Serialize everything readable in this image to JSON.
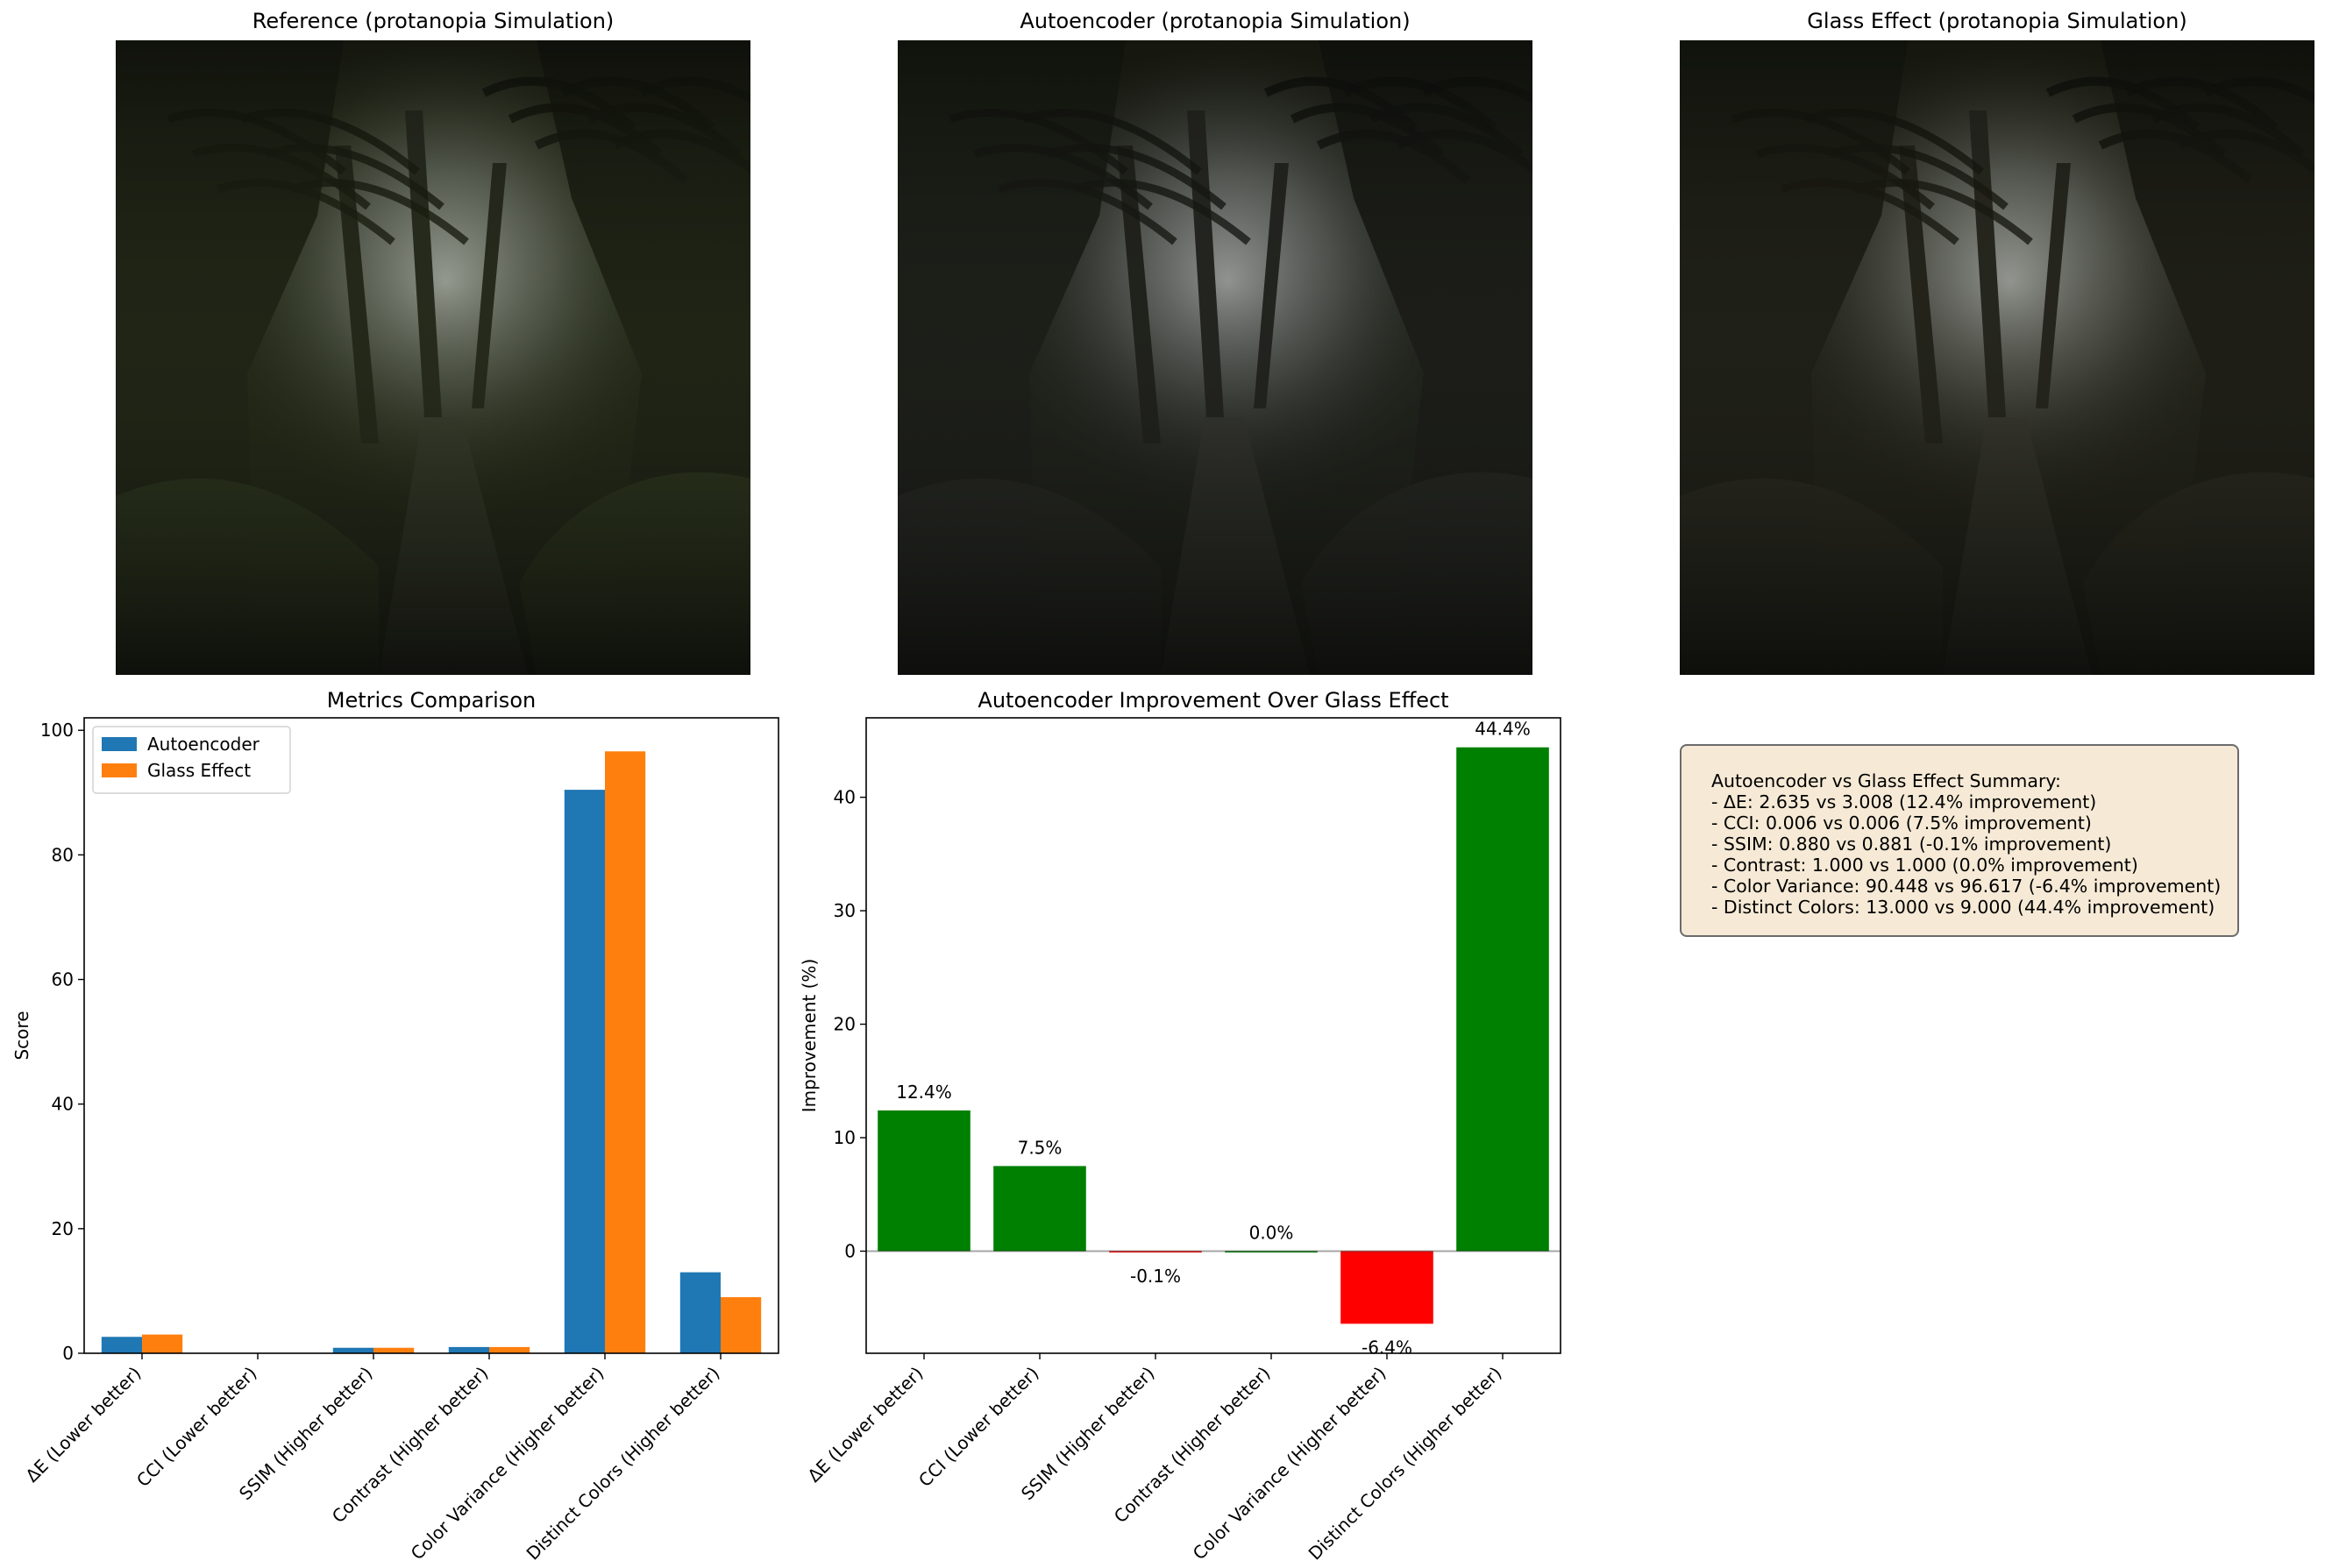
{
  "images": [
    {
      "title": "Reference (protanopia Simulation)",
      "tint": "#26301a",
      "mid": "#5a6a3a"
    },
    {
      "title": "Autoencoder (protanopia Simulation)",
      "tint": "#22241f",
      "mid": "#4a4c46"
    },
    {
      "title": "Glass Effect (protanopia Simulation)",
      "tint": "#24241c",
      "mid": "#55533f"
    }
  ],
  "chart_data": [
    {
      "type": "bar",
      "title": "Metrics Comparison",
      "xlabel": "",
      "ylabel": "Score",
      "categories": [
        "ΔE (Lower better)",
        "CCI (Lower better)",
        "SSIM (Higher better)",
        "Contrast (Higher better)",
        "Color Variance (Higher better)",
        "Distinct Colors (Higher better)"
      ],
      "series": [
        {
          "name": "Autoencoder",
          "color": "#1f77b4",
          "values": [
            2.635,
            0.006,
            0.88,
            1.0,
            90.448,
            13.0
          ]
        },
        {
          "name": "Glass Effect",
          "color": "#ff7f0e",
          "values": [
            3.008,
            0.006,
            0.881,
            1.0,
            96.617,
            9.0
          ]
        }
      ],
      "ylim": [
        0,
        102
      ],
      "yticks": [
        0,
        20,
        40,
        60,
        80,
        100
      ],
      "legend": "top-left",
      "grid": false
    },
    {
      "type": "bar",
      "title": "Autoencoder Improvement Over Glass Effect",
      "xlabel": "",
      "ylabel": "Improvement (%)",
      "categories": [
        "ΔE (Lower better)",
        "CCI (Lower better)",
        "SSIM (Higher better)",
        "Contrast (Higher better)",
        "Color Variance (Higher better)",
        "Distinct Colors (Higher better)"
      ],
      "values": [
        12.4,
        7.5,
        -0.1,
        0.0,
        -6.4,
        44.4
      ],
      "labels": [
        "12.4%",
        "7.5%",
        "-0.1%",
        "0.0%",
        "-6.4%",
        "44.4%"
      ],
      "positive_color": "#008000",
      "negative_color": "#ff0000",
      "ylim": [
        -9,
        47
      ],
      "yticks": [
        0,
        10,
        20,
        30,
        40
      ],
      "grid": false
    }
  ],
  "summary": {
    "lines": [
      "Autoencoder vs Glass Effect Summary:",
      "- ΔE: 2.635 vs 3.008 (12.4% improvement)",
      "- CCI: 0.006 vs 0.006 (7.5% improvement)",
      "- SSIM: 0.880 vs 0.881 (-0.1% improvement)",
      "- Contrast: 1.000 vs 1.000 (0.0% improvement)",
      "- Color Variance: 90.448 vs 96.617 (-6.4% improvement)",
      "- Distinct Colors: 13.000 vs 9.000 (44.4% improvement)"
    ]
  }
}
